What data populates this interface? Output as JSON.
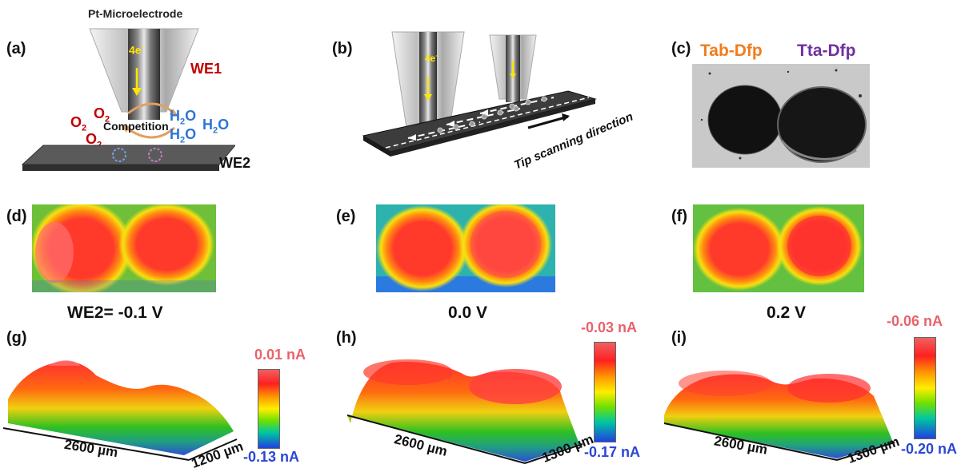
{
  "panels": {
    "a": {
      "tag": "(a)",
      "electrode": "Pt-Microelectrode",
      "electron": "4e",
      "electron_sup": "-",
      "we1": "WE1",
      "we2": "WE2",
      "competition": "Competition",
      "o2": "O",
      "o2_sub": "2",
      "h2o": "H",
      "h2o_sub": "2",
      "h2o_end": "O"
    },
    "b": {
      "tag": "(b)",
      "electron": "4e",
      "electron_sup": "-",
      "direction": "Tip scanning direction"
    },
    "c": {
      "tag": "(c)",
      "left": "Tab-Dfp",
      "right": "Tta-Dfp"
    },
    "d": {
      "tag": "(d)",
      "potential": "WE2= -0.1 V"
    },
    "e": {
      "tag": "(e)",
      "potential": "0.0 V"
    },
    "f": {
      "tag": "(f)",
      "potential": "0.2 V"
    },
    "g": {
      "tag": "(g)",
      "top": "0.01 nA",
      "bottom": "-0.13 nA",
      "xlen": "2600 µm",
      "ylen": "1200 µm"
    },
    "h": {
      "tag": "(h)",
      "top": "-0.03 nA",
      "bottom": "-0.17 nA",
      "xlen": "2600 µm",
      "ylen": "1300 µm"
    },
    "i": {
      "tag": "(i)",
      "top": "-0.06 nA",
      "bottom": "-0.20 nA",
      "xlen": "2600 µm",
      "ylen": "1300 µm"
    }
  },
  "colors": {
    "red_label": "#c00000",
    "blue_label": "#2e75d6",
    "orange_label": "#f07d1e",
    "purple_label": "#7030a0"
  }
}
